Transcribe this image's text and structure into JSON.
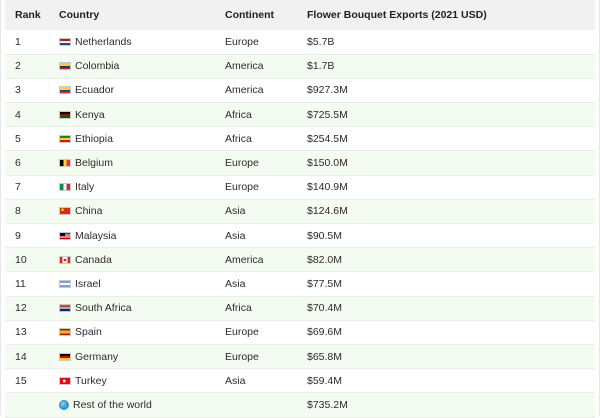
{
  "table": {
    "headers": {
      "rank": "Rank",
      "country": "Country",
      "continent": "Continent",
      "exports": "Flower Bouquet Exports (2021 USD)"
    },
    "rows": [
      {
        "rank": "1",
        "country": "Netherlands",
        "continent": "Europe",
        "exports": "$5.7B",
        "flag": "linear-gradient(to bottom,#ae1c28 0 33%,#ffffff 33% 66%,#21468b 66% 100%)"
      },
      {
        "rank": "2",
        "country": "Colombia",
        "continent": "America",
        "exports": "$1.7B",
        "flag": "linear-gradient(to bottom,#fcd116 0 50%,#003893 50% 75%,#ce1126 75% 100%)"
      },
      {
        "rank": "3",
        "country": "Ecuador",
        "continent": "America",
        "exports": "$927.3M",
        "flag": "linear-gradient(to bottom,#ffdd00 0 50%,#034ea2 50% 75%,#ed1c24 75% 100%)"
      },
      {
        "rank": "4",
        "country": "Kenya",
        "continent": "Africa",
        "exports": "$725.5M",
        "flag": "linear-gradient(to bottom,#000000 0 30%,#ffffff 30% 36%,#bb0000 36% 64%,#ffffff 64% 70%,#006600 70% 100%)"
      },
      {
        "rank": "5",
        "country": "Ethiopia",
        "continent": "Africa",
        "exports": "$254.5M",
        "flag": "linear-gradient(to bottom,#078930 0 33%,#fcdd09 33% 66%,#da121a 66% 100%)"
      },
      {
        "rank": "6",
        "country": "Belgium",
        "continent": "Europe",
        "exports": "$150.0M",
        "flag": "linear-gradient(to right,#000000 0 33%,#fdda24 33% 66%,#ef3340 66% 100%)"
      },
      {
        "rank": "7",
        "country": "Italy",
        "continent": "Europe",
        "exports": "$140.9M",
        "flag": "linear-gradient(to right,#009246 0 33%,#ffffff 33% 66%,#ce2b37 66% 100%)"
      },
      {
        "rank": "8",
        "country": "China",
        "continent": "Asia",
        "exports": "$124.6M",
        "flag": "radial-gradient(circle at 25% 30%,#ffde00 0 14%,transparent 16%),linear-gradient(#de2910,#de2910)"
      },
      {
        "rank": "9",
        "country": "Malaysia",
        "continent": "Asia",
        "exports": "$90.5M",
        "flag": "linear-gradient(#010066,#010066) 0 0/50% 55% no-repeat,repeating-linear-gradient(to bottom,#cc0001 0 14.3%,#ffffff 14.3% 28.6%)"
      },
      {
        "rank": "10",
        "country": "Canada",
        "continent": "America",
        "exports": "$82.0M",
        "flag": "radial-gradient(circle at 50% 50%,#d52b1e 0 22%,transparent 24%),linear-gradient(to right,#d52b1e 0 25%,#ffffff 25% 75%,#d52b1e 75% 100%)"
      },
      {
        "rank": "11",
        "country": "Israel",
        "continent": "Asia",
        "exports": "$77.5M",
        "flag": "linear-gradient(to bottom,#ffffff 0 12%,#0038b8 12% 24%,#ffffff 24% 76%,#0038b8 76% 88%,#ffffff 88% 100%)"
      },
      {
        "rank": "12",
        "country": "South Africa",
        "continent": "Africa",
        "exports": "$70.4M",
        "flag": "linear-gradient(to bottom,#de3831 0 33%,#ffffff 33% 38%,#007a4d 38% 62%,#ffffff 62% 67%,#002395 67% 100%)"
      },
      {
        "rank": "13",
        "country": "Spain",
        "continent": "Europe",
        "exports": "$69.6M",
        "flag": "linear-gradient(to bottom,#aa151b 0 25%,#f1bf00 25% 75%,#aa151b 75% 100%)"
      },
      {
        "rank": "14",
        "country": "Germany",
        "continent": "Europe",
        "exports": "$65.8M",
        "flag": "linear-gradient(to bottom,#000000 0 33%,#dd0000 33% 66%,#ffce00 66% 100%)"
      },
      {
        "rank": "15",
        "country": "Turkey",
        "continent": "Asia",
        "exports": "$59.4M",
        "flag": "radial-gradient(circle at 42% 50%,#ffffff 0 20%,transparent 22%),linear-gradient(#e30a17,#e30a17)"
      },
      {
        "rank": "",
        "country": "Rest of the world",
        "continent": "",
        "exports": "$735.2M",
        "flag": "globe"
      }
    ]
  }
}
